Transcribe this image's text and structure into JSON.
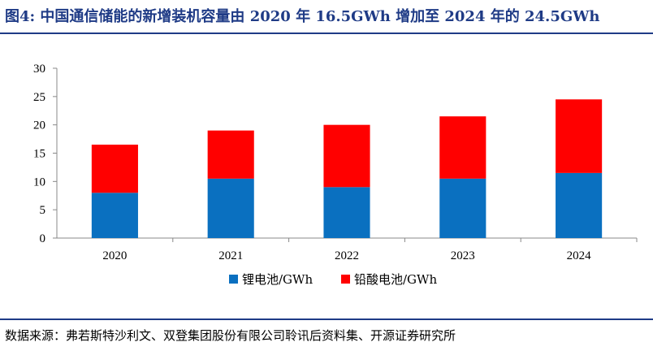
{
  "header": {
    "title": "图4:  中国通信储能的新增装机容量由 2020 年 16.5GWh 增加至 2024 年的 24.5GWh"
  },
  "footer": {
    "source": "数据来源：弗若斯特沙利文、双登集团股份有限公司聆讯后资料集、开源证券研究所"
  },
  "chart_data": {
    "type": "bar",
    "stacked": true,
    "title": "",
    "xlabel": "",
    "ylabel": "",
    "categories": [
      "2020",
      "2021",
      "2022",
      "2023",
      "2024"
    ],
    "series": [
      {
        "name": "锂电池/GWh",
        "color": "#0a70c0",
        "values": [
          8.0,
          10.5,
          9.0,
          10.5,
          11.5
        ]
      },
      {
        "name": "铅酸电池/GWh",
        "color": "#ff0000",
        "values": [
          8.5,
          8.5,
          11.0,
          11.0,
          13.0
        ]
      }
    ],
    "ylim": [
      0,
      30
    ],
    "yticks": [
      "0",
      "5",
      "10",
      "15",
      "20",
      "25",
      "30"
    ],
    "grid": false,
    "legend_position": "bottom"
  }
}
